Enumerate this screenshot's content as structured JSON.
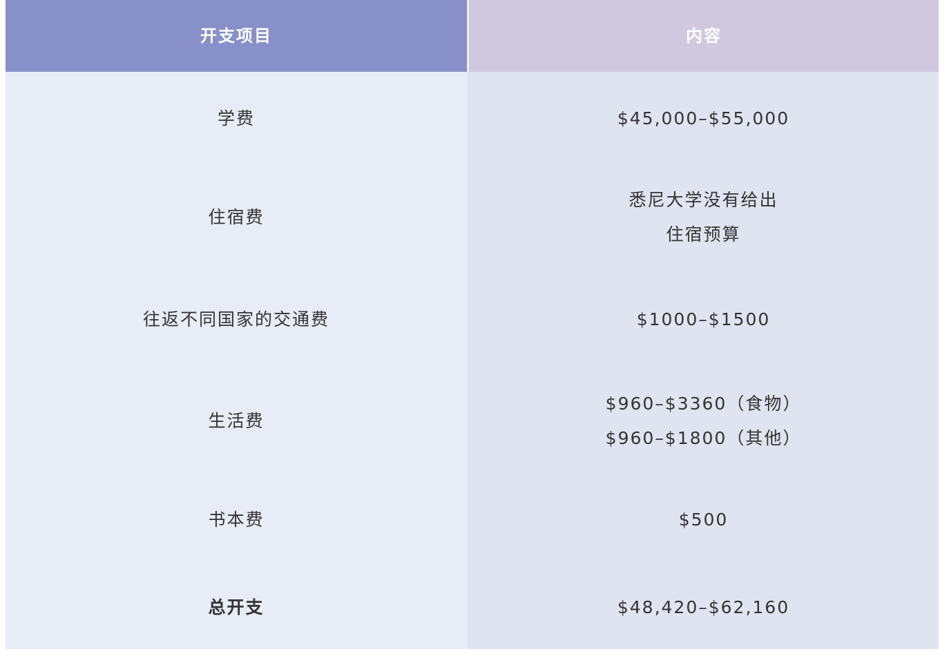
{
  "header": {
    "col1": "开支项目",
    "col2": "内容"
  },
  "colors": {
    "header_left": "#8790c8",
    "header_right": "#cfc8df",
    "body_left": "#e8ecf7",
    "body_right": "#e0e4f0"
  },
  "rows": [
    {
      "item": "学费",
      "content": [
        "$45,000–$55,000"
      ]
    },
    {
      "item": "住宿费",
      "content": [
        "悉尼大学没有给出",
        "住宿预算"
      ]
    },
    {
      "item": "往返不同国家的交通费",
      "content": [
        "$1000–$1500"
      ]
    },
    {
      "item": "生活费",
      "content": [
        "$960–$3360（食物）",
        "$960–$1800（其他）"
      ]
    },
    {
      "item": "书本费",
      "content": [
        "$500"
      ]
    },
    {
      "item": "总开支",
      "content": [
        "$48,420–$62,160"
      ]
    }
  ]
}
